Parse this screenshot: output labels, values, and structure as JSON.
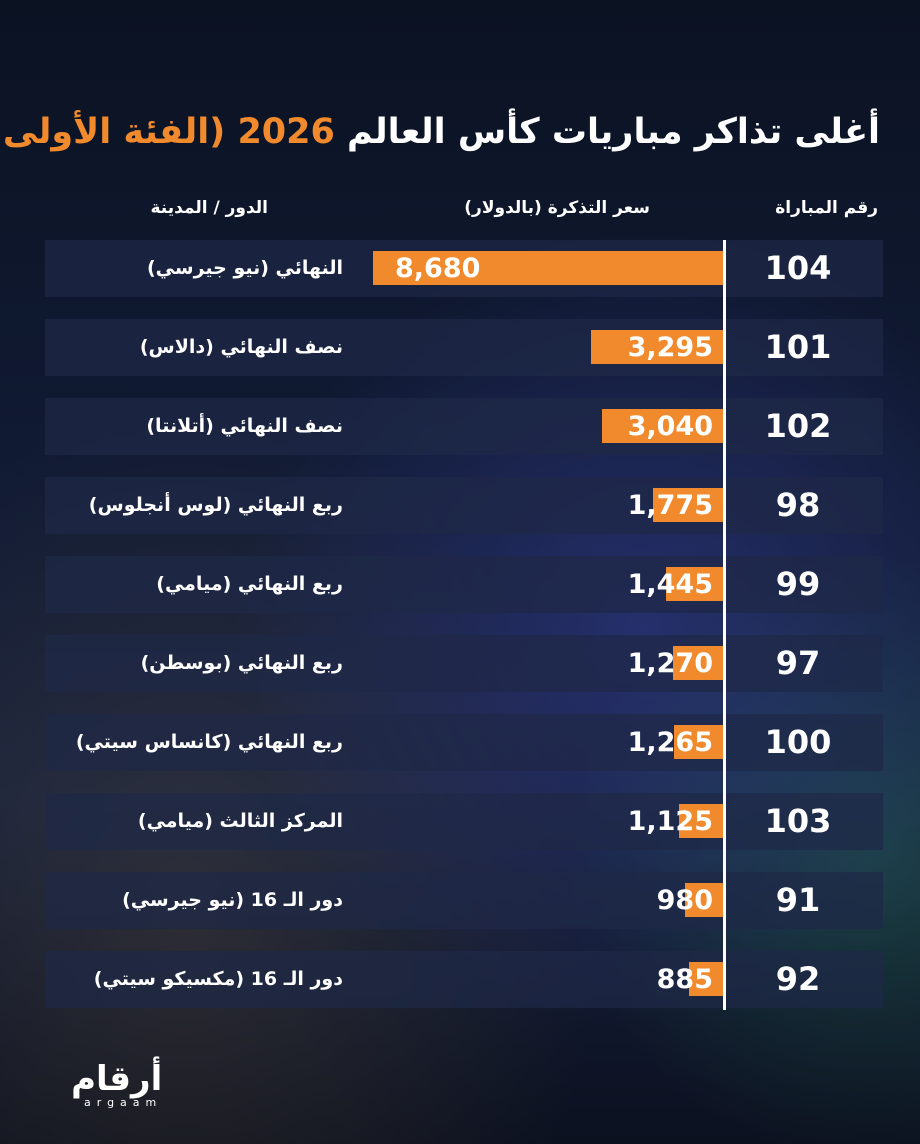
{
  "title": {
    "text": "أغلى تذاكر مباريات كأس العالم",
    "highlight": "2026 (الفئة الأولى)"
  },
  "chart_data": {
    "type": "bar",
    "orientation": "horizontal",
    "title": "أغلى تذاكر مباريات كأس العالم 2026 (الفئة الأولى)",
    "columns": {
      "match": "رقم المباراة",
      "price": "سعر التذكرة (بالدولار)",
      "round": "الدور / المدينة"
    },
    "rows": [
      {
        "match": "104",
        "round": "النهائي (نيو جيرسي)",
        "value": 8680,
        "label": "8,680"
      },
      {
        "match": "101",
        "round": "نصف النهائي (دالاس)",
        "value": 3295,
        "label": "3,295"
      },
      {
        "match": "102",
        "round": "نصف النهائي (أتلانتا)",
        "value": 3040,
        "label": "3,040"
      },
      {
        "match": "98",
        "round": "ربع النهائي (لوس أنجلوس)",
        "value": 1775,
        "label": "1,775"
      },
      {
        "match": "99",
        "round": "ربع النهائي (ميامي)",
        "value": 1445,
        "label": "1,445"
      },
      {
        "match": "97",
        "round": "ربع النهائي (بوسطن)",
        "value": 1270,
        "label": "1,270"
      },
      {
        "match": "100",
        "round": "ربع النهائي (كانساس سيتي)",
        "value": 1265,
        "label": "1,265"
      },
      {
        "match": "103",
        "round": "المركز الثالث (ميامي)",
        "value": 1125,
        "label": "1,125"
      },
      {
        "match": "91",
        "round": "دور الـ 16 (نيو جيرسي)",
        "value": 980,
        "label": "980"
      },
      {
        "match": "92",
        "round": "دور الـ 16 (مكسيكو سيتي)",
        "value": 885,
        "label": "885"
      }
    ],
    "xlim": [
      0,
      8680
    ],
    "bar_color": "#f08a2c"
  },
  "logo": {
    "ar": "أرقام",
    "en": "argaam"
  }
}
